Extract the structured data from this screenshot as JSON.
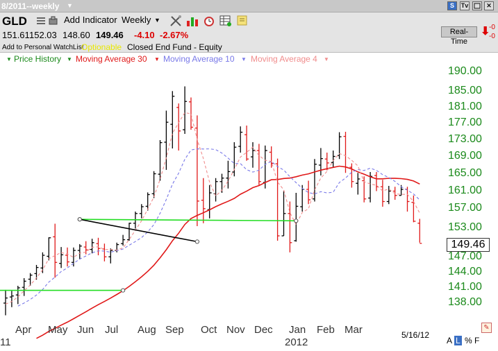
{
  "window": {
    "title": "8/2011--weekly"
  },
  "toolbar": {
    "symbol": "GLD",
    "add_indicator": "Add Indicator",
    "period": "Weekly",
    "quote": {
      "open": "151.61",
      "high": "152.03",
      "low": "148.60",
      "close": "149.46",
      "change": "-4.10",
      "pct": "-2.67%"
    },
    "watchlist": "Add to Personal WatchList",
    "optionable": "Optionable",
    "desc": "Closed End Fund - Equity",
    "realtime": "Real-Time",
    "rt_vals": [
      "-0",
      "-0"
    ]
  },
  "legend": {
    "price_history": "Price History",
    "ma30": "Moving Average 30",
    "ma10": "Moving Average 10",
    "ma4": "Moving Average 4"
  },
  "colors": {
    "price_legend": "#1b8a1b",
    "ma30": "#e01818",
    "ma10": "#7878e8",
    "ma4": "#f08c8c",
    "bar_up": "#000000",
    "bar_down": "#e01818",
    "trend_green": "#22dd22",
    "trend_black": "#000000"
  },
  "chart_data": {
    "type": "line",
    "title": "",
    "y_ticks": [
      "190.00",
      "185.00",
      "181.00",
      "177.00",
      "173.00",
      "169.00",
      "165.00",
      "161.00",
      "157.00",
      "153.00",
      "147.00",
      "144.00",
      "141.00",
      "138.00"
    ],
    "x_labels": [
      {
        "label": "11"
      },
      {
        "label": "Apr"
      },
      {
        "label": "May"
      },
      {
        "label": "Jun"
      },
      {
        "label": "Jul"
      },
      {
        "label": "Aug"
      },
      {
        "label": "Sep"
      },
      {
        "label": "Oct"
      },
      {
        "label": "Nov"
      },
      {
        "label": "Dec"
      },
      {
        "label": "Jan"
      },
      {
        "label": "2012"
      },
      {
        "label": "Feb"
      },
      {
        "label": "Mar"
      }
    ],
    "last_price": "149.46",
    "last_date": "5/16/12",
    "scale_controls": [
      "A",
      "L",
      "%",
      "F"
    ],
    "weeks": [
      [
        137.6,
        140.2,
        135.2,
        138.6
      ],
      [
        138.8,
        140.0,
        136.8,
        139.0
      ],
      [
        139.2,
        141.0,
        137.4,
        140.6
      ],
      [
        140.7,
        142.5,
        139.0,
        141.9
      ],
      [
        142.3,
        143.5,
        141.0,
        143.1
      ],
      [
        143.4,
        145.1,
        142.2,
        144.6
      ],
      [
        144.5,
        147.6,
        143.5,
        147.0
      ],
      [
        146.8,
        150.7,
        146.0,
        150.6
      ],
      [
        150.8,
        153.5,
        142.6,
        145.6
      ],
      [
        145.4,
        148.7,
        144.5,
        147.1
      ],
      [
        147.0,
        148.6,
        144.8,
        145.7
      ],
      [
        145.6,
        148.6,
        144.8,
        148.0
      ],
      [
        148.0,
        149.3,
        146.2,
        148.9
      ],
      [
        148.7,
        149.9,
        147.2,
        148.1
      ],
      [
        148.2,
        150.4,
        147.4,
        149.6
      ],
      [
        149.4,
        150.6,
        147.0,
        148.4
      ],
      [
        148.3,
        149.4,
        145.8,
        146.7
      ],
      [
        146.7,
        148.4,
        145.4,
        148.0
      ],
      [
        148.0,
        149.6,
        147.6,
        149.2
      ],
      [
        149.4,
        151.2,
        149.0,
        150.2
      ],
      [
        150.2,
        153.7,
        150.0,
        153.6
      ],
      [
        153.6,
        156.0,
        152.5,
        155.6
      ],
      [
        155.6,
        157.6,
        154.6,
        157.0
      ],
      [
        157.1,
        160.3,
        156.2,
        159.8
      ],
      [
        160.0,
        165.2,
        159.0,
        164.6
      ],
      [
        164.5,
        172.5,
        163.0,
        171.9
      ],
      [
        172.0,
        179.7,
        165.5,
        176.8
      ],
      [
        176.3,
        184.6,
        170.5,
        183.3
      ],
      [
        180.5,
        181.5,
        170.0,
        174.7
      ],
      [
        175.0,
        185.8,
        174.0,
        182.0
      ],
      [
        181.9,
        183.0,
        175.0,
        175.6
      ],
      [
        175.4,
        178.5,
        153.0,
        158.3
      ],
      [
        158.5,
        163.6,
        153.6,
        156.6
      ],
      [
        156.4,
        162.0,
        154.6,
        160.2
      ],
      [
        160.0,
        163.6,
        158.2,
        162.8
      ],
      [
        162.8,
        164.6,
        160.2,
        163.6
      ],
      [
        163.6,
        167.6,
        161.2,
        165.1
      ],
      [
        165.0,
        172.0,
        164.0,
        170.8
      ],
      [
        171.0,
        175.8,
        169.5,
        174.4
      ],
      [
        173.8,
        176.0,
        167.6,
        168.0
      ],
      [
        168.5,
        172.0,
        166.0,
        170.0
      ],
      [
        170.0,
        171.6,
        162.0,
        162.8
      ],
      [
        162.6,
        171.2,
        161.2,
        170.0
      ],
      [
        169.6,
        171.0,
        166.0,
        167.0
      ],
      [
        166.9,
        168.1,
        150.0,
        151.0
      ],
      [
        151.0,
        160.6,
        151.0,
        155.6
      ],
      [
        155.6,
        158.2,
        147.6,
        149.6
      ],
      [
        150.0,
        160.2,
        149.8,
        157.1
      ],
      [
        157.0,
        162.0,
        156.0,
        161.0
      ],
      [
        161.0,
        163.0,
        157.6,
        158.6
      ],
      [
        158.8,
        168.0,
        158.2,
        166.8
      ],
      [
        166.6,
        170.6,
        164.2,
        168.1
      ],
      [
        168.0,
        169.5,
        165.4,
        167.1
      ],
      [
        167.2,
        170.0,
        166.2,
        168.6
      ],
      [
        168.8,
        174.4,
        168.0,
        173.3
      ],
      [
        173.4,
        174.5,
        164.8,
        166.1
      ],
      [
        166.1,
        167.0,
        161.4,
        162.8
      ],
      [
        162.4,
        164.8,
        159.8,
        163.4
      ],
      [
        163.0,
        164.0,
        158.0,
        158.8
      ],
      [
        159.0,
        165.0,
        158.0,
        164.0
      ],
      [
        164.2,
        165.0,
        160.6,
        161.6
      ],
      [
        161.6,
        163.2,
        157.0,
        158.2
      ],
      [
        158.2,
        161.8,
        157.6,
        160.6
      ],
      [
        160.6,
        161.6,
        158.6,
        159.6
      ],
      [
        159.6,
        162.0,
        159.6,
        161.0
      ],
      [
        161.0,
        161.6,
        156.0,
        158.2
      ],
      [
        158.0,
        159.6,
        153.8,
        154.0
      ],
      [
        153.6,
        154.5,
        149.6,
        149.46
      ]
    ],
    "trendlines": [
      {
        "color": "green",
        "points": [
          [
            0,
            140.1
          ],
          [
            19,
            140.1
          ]
        ]
      },
      {
        "color": "green",
        "points": [
          [
            12,
            154.4
          ],
          [
            47,
            154.1
          ]
        ]
      },
      {
        "color": "black",
        "points": [
          [
            12,
            154.4
          ],
          [
            31,
            149.8
          ]
        ]
      }
    ]
  }
}
